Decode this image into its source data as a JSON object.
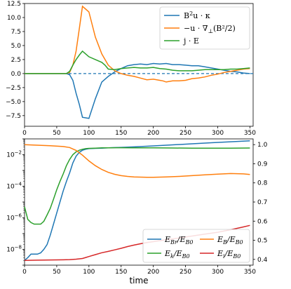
{
  "chart_data": [
    {
      "type": "line",
      "xlim": [
        0,
        355
      ],
      "ylim": [
        -9.4,
        12.5
      ],
      "xticks": [
        0,
        50,
        100,
        150,
        200,
        250,
        300,
        350
      ],
      "yticks": [
        -7.5,
        -5.0,
        -2.5,
        0.0,
        2.5,
        5.0,
        7.5,
        10.0,
        12.5
      ],
      "ytick_labels": [
        "−7.5",
        "−5.0",
        "−2.5",
        "0.0",
        "2.5",
        "5.0",
        "7.5",
        "10.0",
        "12.5"
      ],
      "legend_position": "top-right",
      "zero_line": {
        "y": 0,
        "style": "dashed",
        "color": "#1f77b4"
      },
      "legend": [
        {
          "pre": "B",
          "sup": "2",
          "post": "u · κ",
          "color": "#1f77b4"
        },
        {
          "pre": "−u · ∇",
          "sub": "⊥",
          "post": "(B²/2)",
          "color": "#ff7f0e"
        },
        {
          "pre": "j · E",
          "color": "#2ca02c"
        }
      ],
      "series": [
        {
          "color": "#1f77b4",
          "x": [
            0,
            50,
            60,
            65,
            70,
            75,
            80,
            85,
            90,
            100,
            110,
            120,
            125,
            130,
            140,
            150,
            160,
            170,
            180,
            190,
            200,
            210,
            220,
            230,
            240,
            250,
            260,
            270,
            280,
            290,
            300,
            310,
            320,
            330,
            340,
            350
          ],
          "y": [
            0,
            0,
            0,
            0,
            -0.2,
            -1.2,
            -3.5,
            -5.5,
            -7.8,
            -8.0,
            -4.5,
            -1.5,
            -1.0,
            -0.5,
            0.3,
            0.9,
            1.4,
            1.6,
            1.7,
            1.6,
            1.8,
            1.7,
            1.8,
            1.6,
            1.6,
            1.5,
            1.4,
            1.4,
            1.2,
            1.0,
            0.8,
            0.6,
            0.4,
            0.3,
            0.1,
            0.0
          ]
        },
        {
          "color": "#ff7f0e",
          "x": [
            0,
            50,
            60,
            65,
            70,
            75,
            80,
            85,
            90,
            95,
            100,
            110,
            120,
            125,
            130,
            140,
            150,
            160,
            170,
            180,
            190,
            200,
            210,
            215,
            220,
            230,
            240,
            250,
            260,
            270,
            280,
            290,
            300,
            310,
            320,
            330,
            340,
            350
          ],
          "y": [
            0,
            0,
            0,
            0,
            0.2,
            1.5,
            4.0,
            8.0,
            12.0,
            11.5,
            11.0,
            6.5,
            3.5,
            2.5,
            1.5,
            0.5,
            0.0,
            -0.3,
            -0.5,
            -0.8,
            -1.1,
            -1.0,
            -1.2,
            -1.3,
            -1.5,
            -1.3,
            -1.3,
            -1.2,
            -0.9,
            -0.8,
            -0.6,
            -0.3,
            -0.1,
            0.2,
            0.4,
            0.6,
            0.8,
            0.9
          ]
        },
        {
          "color": "#2ca02c",
          "x": [
            0,
            50,
            60,
            65,
            70,
            75,
            80,
            85,
            90,
            95,
            100,
            110,
            120,
            125,
            130,
            140,
            150,
            160,
            170,
            180,
            190,
            200,
            210,
            220,
            230,
            240,
            250,
            260,
            270,
            280,
            290,
            300,
            310,
            320,
            330,
            340,
            350
          ],
          "y": [
            0,
            0,
            0,
            0,
            0.4,
            1.5,
            2.5,
            3.3,
            4.0,
            3.5,
            3.0,
            2.5,
            2.0,
            1.5,
            0.8,
            0.7,
            0.9,
            1.0,
            1.1,
            1.0,
            1.0,
            1.1,
            0.9,
            0.8,
            0.6,
            0.5,
            0.5,
            0.5,
            0.6,
            0.7,
            0.7,
            0.7,
            0.7,
            0.8,
            0.8,
            0.9,
            1.0
          ]
        }
      ]
    },
    {
      "type": "line",
      "xlim": [
        0,
        355
      ],
      "xticks": [
        0,
        50,
        100,
        150,
        200,
        250,
        300,
        350
      ],
      "xlabel": "time",
      "yscale": "log",
      "ylim": [
        1e-09,
        0.1
      ],
      "yticks_exp": [
        -8,
        -6,
        -4,
        -2
      ],
      "y2lim": [
        0.37,
        1.03
      ],
      "y2ticks": [
        0.4,
        0.5,
        0.6,
        0.7,
        0.8,
        0.9,
        1.0
      ],
      "legend_position": "bottom-right",
      "legend": [
        {
          "num": "E",
          "num_sub": "Br",
          "den": "E",
          "den_sub": "B0",
          "color": "#1f77b4"
        },
        {
          "num": "E",
          "num_sub": "B",
          "den": "E",
          "den_sub": "B0",
          "color": "#ff7f0e"
        },
        {
          "num": "E",
          "num_sub": "k",
          "den": "E",
          "den_sub": "B0",
          "color": "#2ca02c"
        },
        {
          "num": "E",
          "num_sub": "i",
          "den": "E",
          "den_sub": "B0",
          "color": "#d62728"
        }
      ],
      "series": [
        {
          "color": "#1f77b4",
          "axis": "left",
          "x": [
            0,
            5,
            10,
            15,
            20,
            25,
            30,
            35,
            40,
            45,
            50,
            55,
            60,
            65,
            70,
            75,
            80,
            85,
            90,
            95,
            100,
            110,
            120,
            130,
            140,
            150,
            170,
            200,
            230,
            260,
            290,
            320,
            350
          ],
          "y": [
            2e-09,
            3e-09,
            5e-09,
            5e-09,
            5e-09,
            6e-09,
            1e-08,
            2e-08,
            8e-08,
            4e-07,
            2e-06,
            1e-05,
            5e-05,
            0.0002,
            0.0007,
            0.003,
            0.008,
            0.014,
            0.019,
            0.022,
            0.024,
            0.025,
            0.026,
            0.027,
            0.028,
            0.029,
            0.031,
            0.036,
            0.042,
            0.049,
            0.057,
            0.066,
            0.075
          ]
        },
        {
          "color": "#2ca02c",
          "axis": "left",
          "x": [
            0,
            5,
            10,
            15,
            20,
            25,
            30,
            35,
            40,
            45,
            50,
            55,
            60,
            65,
            70,
            75,
            80,
            85,
            90,
            95,
            100,
            110,
            120,
            130,
            140,
            150,
            170,
            200,
            230,
            260,
            290,
            320,
            350
          ],
          "y": [
            5e-06,
            8e-07,
            5e-07,
            4e-07,
            4e-07,
            4e-07,
            6e-07,
            1.5e-06,
            4e-06,
            1.5e-05,
            6e-05,
            0.0002,
            0.0006,
            0.002,
            0.005,
            0.01,
            0.015,
            0.019,
            0.022,
            0.024,
            0.025,
            0.026,
            0.027,
            0.027,
            0.0275,
            0.0275,
            0.027,
            0.027,
            0.0265,
            0.026,
            0.026,
            0.026,
            0.0265
          ]
        },
        {
          "color": "#ff7f0e",
          "axis": "right",
          "x": [
            0,
            20,
            40,
            60,
            70,
            80,
            90,
            95,
            100,
            110,
            120,
            130,
            140,
            150,
            160,
            170,
            180,
            190,
            200,
            210,
            220,
            240,
            260,
            280,
            300,
            320,
            340,
            350
          ],
          "y": [
            1.0,
            0.997,
            0.994,
            0.99,
            0.985,
            0.97,
            0.945,
            0.93,
            0.915,
            0.89,
            0.87,
            0.855,
            0.845,
            0.838,
            0.834,
            0.831,
            0.83,
            0.829,
            0.829,
            0.83,
            0.831,
            0.834,
            0.838,
            0.842,
            0.846,
            0.849,
            0.847,
            0.844
          ]
        },
        {
          "color": "#d62728",
          "axis": "right",
          "x": [
            0,
            20,
            40,
            60,
            70,
            80,
            90,
            95,
            100,
            110,
            120,
            130,
            140,
            150,
            160,
            170,
            180,
            190,
            200,
            210,
            220,
            240,
            260,
            280,
            300,
            320,
            340,
            350
          ],
          "y": [
            0.395,
            0.396,
            0.397,
            0.398,
            0.399,
            0.401,
            0.405,
            0.41,
            0.415,
            0.425,
            0.435,
            0.442,
            0.45,
            0.458,
            0.467,
            0.475,
            0.482,
            0.488,
            0.493,
            0.498,
            0.503,
            0.512,
            0.522,
            0.532,
            0.542,
            0.555,
            0.57,
            0.578
          ]
        }
      ]
    }
  ]
}
